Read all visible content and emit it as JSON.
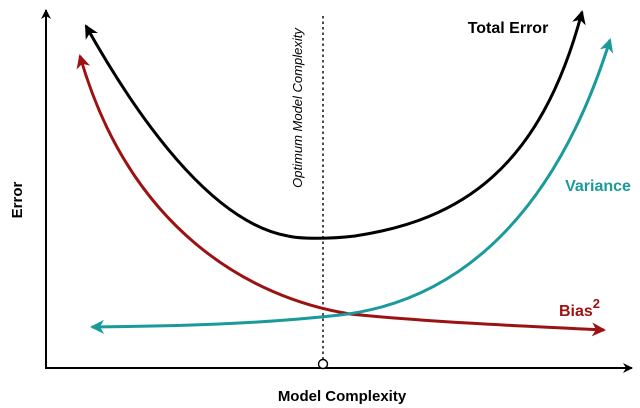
{
  "axes": {
    "x_label": "Model Complexity",
    "y_label": "Error"
  },
  "curves": {
    "total_error": {
      "label": "Total Error",
      "color": "#000000"
    },
    "variance": {
      "label": "Variance",
      "color": "#1a9a9a"
    },
    "bias": {
      "label": "Bias",
      "superscript": "2",
      "color": "#9c1212"
    }
  },
  "optimum": {
    "label": "Optimum Model Complexity"
  }
}
